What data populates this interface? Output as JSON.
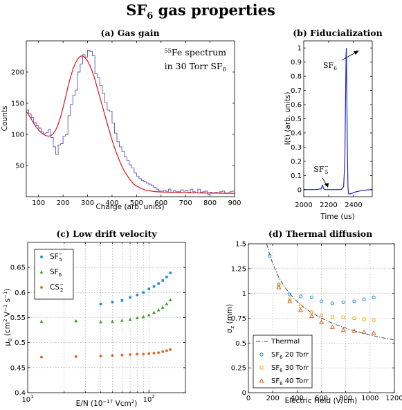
{
  "figure": {
    "title_main": "SF",
    "title_sub": "6",
    "title_rest": " gas properties"
  },
  "chart_data": [
    {
      "id": "a",
      "type": "line",
      "title": "(a) Gas gain",
      "xlabel": "Charge (arb. units)",
      "ylabel": "Counts",
      "xlim": [
        50,
        900
      ],
      "ylim": [
        0,
        250
      ],
      "xticks": [
        100,
        200,
        300,
        400,
        500,
        600,
        700,
        800,
        900
      ],
      "yticks": [
        50,
        100,
        150,
        200
      ],
      "annotation_line1_sup": "55",
      "annotation_line1_text": "Fe spectrum",
      "annotation_line2_text": "in 30 Torr SF",
      "annotation_line2_sub": "6",
      "series": [
        {
          "name": "",
          "kind": "histogram",
          "color": "#5555bb",
          "bin_width": 10,
          "edges_start": 50,
          "values": [
            139,
            133,
            127,
            119,
            114,
            110,
            104,
            101,
            103,
            108,
            95,
            80,
            68,
            83,
            85,
            97,
            100,
            130,
            148,
            163,
            171,
            200,
            213,
            228,
            224,
            235,
            233,
            226,
            197,
            191,
            178,
            166,
            151,
            139,
            137,
            118,
            102,
            88,
            80,
            73,
            64,
            58,
            51,
            46,
            38,
            33,
            29,
            26,
            24,
            22,
            20,
            18,
            15,
            12,
            9,
            9,
            10,
            8,
            12,
            7,
            10,
            8,
            8,
            11,
            9,
            10,
            7,
            12,
            8,
            6,
            12,
            7,
            8,
            9,
            4,
            7,
            6,
            7,
            6,
            8,
            9,
            6,
            6,
            8,
            9
          ]
        },
        {
          "name": "",
          "kind": "fit",
          "color": "#dd2222",
          "x": [
            50,
            60,
            70,
            80,
            90,
            100,
            110,
            120,
            130,
            140,
            150,
            160,
            170,
            180,
            190,
            200,
            210,
            220,
            230,
            240,
            250,
            260,
            270,
            280,
            290,
            300,
            310,
            320,
            330,
            340,
            350,
            360,
            370,
            380,
            390,
            400,
            410,
            420,
            430,
            440,
            450,
            460,
            470,
            480,
            490,
            500,
            520,
            540,
            560,
            580,
            600,
            620,
            640,
            660,
            680,
            700,
            720,
            740,
            760,
            780,
            800,
            820,
            840,
            860,
            880,
            900
          ],
          "y": [
            137,
            131,
            125,
            118,
            112,
            107,
            103,
            100,
            98,
            97,
            98,
            101,
            107,
            116,
            128,
            143,
            159,
            176,
            191,
            204,
            214,
            221,
            225,
            226,
            223,
            218,
            210,
            200,
            188,
            174,
            160,
            146,
            132,
            118,
            104,
            91,
            79,
            68,
            58,
            49,
            41,
            35,
            29,
            24,
            20,
            17,
            13,
            10,
            9,
            8,
            7.5,
            7.2,
            7,
            6.8,
            6.6,
            6.4,
            6.2,
            6.1,
            6,
            5.9,
            5.8,
            5.7,
            5.6,
            5.5,
            5.4,
            5.3
          ]
        }
      ]
    },
    {
      "id": "b",
      "type": "line",
      "title": "(b) Fiducialization",
      "xlabel": "Time (us)",
      "ylabel": "I(t) (arb. units)",
      "xlim": [
        2000,
        2550
      ],
      "ylim": [
        -0.05,
        1.05
      ],
      "xticks": [
        2000,
        2200,
        2400
      ],
      "yticks": [
        0,
        0.1,
        0.2,
        0.3,
        0.4,
        0.5,
        0.6,
        0.7,
        0.8,
        0.9,
        1
      ],
      "ytick_labels": [
        "0",
        "0.1",
        "0.2",
        "0.3",
        "0.4",
        "0.5",
        "0.6",
        "0.7",
        "0.8",
        "0.9",
        "1"
      ],
      "annotation_peak_main": "SF",
      "annotation_peak_sub": "6",
      "annotation_small_main": "SF",
      "annotation_small_sub": "5",
      "annotation_small_sup": "−",
      "series": [
        {
          "name": "",
          "color": "#2222cc",
          "x": [
            2000,
            2100,
            2140,
            2145,
            2150,
            2155,
            2160,
            2170,
            2200,
            2250,
            2300,
            2320,
            2330,
            2335,
            2340,
            2342,
            2345,
            2350,
            2355,
            2360,
            2370,
            2390,
            2420,
            2460,
            2500,
            2550
          ],
          "y": [
            0,
            0,
            0.005,
            0.02,
            0.03,
            0.02,
            0.005,
            0,
            0,
            0,
            0,
            0.02,
            0.2,
            0.6,
            0.95,
            1.0,
            0.75,
            0.3,
            0.02,
            -0.03,
            -0.03,
            -0.025,
            -0.015,
            -0.008,
            -0.003,
            0
          ]
        }
      ]
    },
    {
      "id": "c",
      "type": "scatter",
      "title": "(c) Low drift velocity",
      "xlabel": "E/N (10^-17 Vcm^2)",
      "xlabel_main": "E/N (10",
      "xlabel_sup1": "−17",
      "xlabel_mid": " Vcm",
      "xlabel_sup2": "2",
      "xlabel_end": ")",
      "ylabel_main": "μ",
      "ylabel_sub": "0",
      "ylabel_text": " (cm",
      "ylabel_sup1": "2",
      "ylabel_text2": " V",
      "ylabel_sup2": "−1",
      "ylabel_text3": " s",
      "ylabel_sup3": "−1",
      "ylabel_end": ")",
      "xscale": "log",
      "xlim": [
        10,
        200
      ],
      "ylim": [
        0.4,
        0.7
      ],
      "yticks": [
        0.4,
        0.45,
        0.5,
        0.55,
        0.6,
        0.65
      ],
      "ytick_labels": [
        "0.4",
        "0.45",
        "0.5",
        "0.55",
        "0.6",
        "0.65"
      ],
      "xtick_labels": [
        {
          "base": "10",
          "exp": "1"
        },
        {
          "base": "10",
          "exp": "2"
        }
      ],
      "legend_position": "top-left",
      "series": [
        {
          "name": "SF",
          "name_sub": "5",
          "name_sup": "−",
          "color": "#1a8fd6",
          "marker": "square",
          "x": [
            40,
            50,
            60,
            70,
            80,
            90,
            100,
            110,
            120,
            130,
            140,
            150
          ],
          "y": [
            0.577,
            0.581,
            0.584,
            0.59,
            0.595,
            0.6,
            0.607,
            0.612,
            0.618,
            0.624,
            0.631,
            0.639
          ]
        },
        {
          "name": "SF",
          "name_sub": "6",
          "name_sup": "",
          "color": "#3a9a1f",
          "marker": "triangle",
          "x": [
            13,
            25,
            40,
            50,
            60,
            70,
            80,
            90,
            100,
            110,
            120,
            130,
            140,
            150
          ],
          "y": [
            0.542,
            0.543,
            0.541,
            0.542,
            0.544,
            0.546,
            0.549,
            0.551,
            0.555,
            0.56,
            0.565,
            0.57,
            0.577,
            0.585
          ]
        },
        {
          "name": "CS",
          "name_sub": "2",
          "name_sup": "−",
          "color": "#e0601a",
          "marker": "circle",
          "x": [
            13,
            25,
            40,
            50,
            60,
            70,
            80,
            90,
            100,
            110,
            120,
            130,
            140,
            150
          ],
          "y": [
            0.471,
            0.472,
            0.473,
            0.474,
            0.475,
            0.476,
            0.477,
            0.477,
            0.478,
            0.479,
            0.48,
            0.482,
            0.484,
            0.486
          ]
        }
      ]
    },
    {
      "id": "d",
      "type": "scatter",
      "title": "(d) Thermal diffusion",
      "xlabel": "Electric Field (V/cm)",
      "ylabel_main": "σ",
      "ylabel_sub": "z",
      "ylabel_end": " (mm)",
      "xlim": [
        0,
        1200
      ],
      "ylim": [
        0,
        1.5
      ],
      "xticks": [
        0,
        200,
        400,
        600,
        800,
        1000,
        1200
      ],
      "yticks": [
        0,
        0.25,
        0.5,
        0.75,
        1,
        1.25,
        1.5
      ],
      "ytick_labels": [
        "0",
        "0.25",
        "0.5",
        "0.75",
        "1",
        "1.25",
        "1.5"
      ],
      "legend_position": "bottom-left",
      "series": [
        {
          "name": "Thermal",
          "name_sub": "",
          "name_suffix": "",
          "kind": "curve",
          "color": "#444444",
          "x": [
            150,
            175,
            200,
            250,
            300,
            350,
            400,
            450,
            500,
            600,
            700,
            800,
            900,
            1000,
            1100,
            1200
          ],
          "y": [
            1.5,
            1.39,
            1.3,
            1.162,
            1.061,
            0.982,
            0.919,
            0.866,
            0.822,
            0.75,
            0.695,
            0.65,
            0.613,
            0.581,
            0.554,
            0.53
          ]
        },
        {
          "name": "SF",
          "name_sub": "6",
          "name_suffix": " 20 Torr",
          "kind": "points",
          "marker": "circle-open",
          "color": "#1a8fd6",
          "x": [
            175,
            250,
            340,
            430,
            520,
            600,
            690,
            780,
            870,
            950,
            1030
          ],
          "y": [
            1.38,
            1.09,
            0.99,
            0.97,
            0.96,
            0.92,
            0.9,
            0.91,
            0.92,
            0.94,
            0.96
          ]
        },
        {
          "name": "SF",
          "name_sub": "6",
          "name_suffix": " 30 Torr",
          "kind": "points",
          "marker": "square-open",
          "color": "#f0b020",
          "x": [
            250,
            340,
            430,
            520,
            600,
            690,
            780,
            870,
            950,
            1030
          ],
          "y": [
            1.08,
            0.94,
            0.87,
            0.81,
            0.78,
            0.76,
            0.76,
            0.75,
            0.74,
            0.73
          ]
        },
        {
          "name": "SF",
          "name_sub": "6",
          "name_suffix": " 40 Torr",
          "kind": "points",
          "marker": "triangle-open",
          "color": "#e0601a",
          "x": [
            250,
            340,
            430,
            520,
            600,
            690,
            780,
            870,
            950,
            1030
          ],
          "y": [
            1.06,
            0.92,
            0.83,
            0.77,
            0.71,
            0.66,
            0.63,
            0.62,
            0.61,
            0.6
          ]
        }
      ]
    }
  ]
}
